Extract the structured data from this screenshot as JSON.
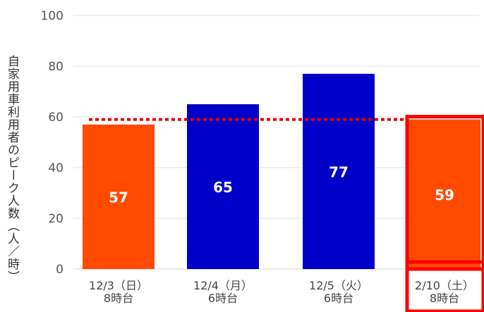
{
  "chart_data": {
    "type": "bar",
    "ylabel": "自家用車利用者のピーク人数（人／時）",
    "ylim": [
      0,
      100
    ],
    "yticks": [
      0,
      20,
      40,
      60,
      80,
      100
    ],
    "categories": [
      [
        "12/3（日）",
        "8時台"
      ],
      [
        "12/4（月）",
        "6時台"
      ],
      [
        "12/5（火）",
        "6時台"
      ],
      [
        "2/10（土）",
        "8時台"
      ]
    ],
    "values": [
      57,
      65,
      77,
      59
    ],
    "value_labels": [
      "57",
      "65",
      "77",
      "59"
    ],
    "bar_colors": [
      "#ff4a00",
      "#0000c8",
      "#0000c8",
      "#ff4a00"
    ],
    "reference_line": {
      "value": 59,
      "color": "#e00000",
      "style": "dotted"
    },
    "highlight": {
      "category_index": 3,
      "color": "#ff0000"
    },
    "grid": true
  }
}
